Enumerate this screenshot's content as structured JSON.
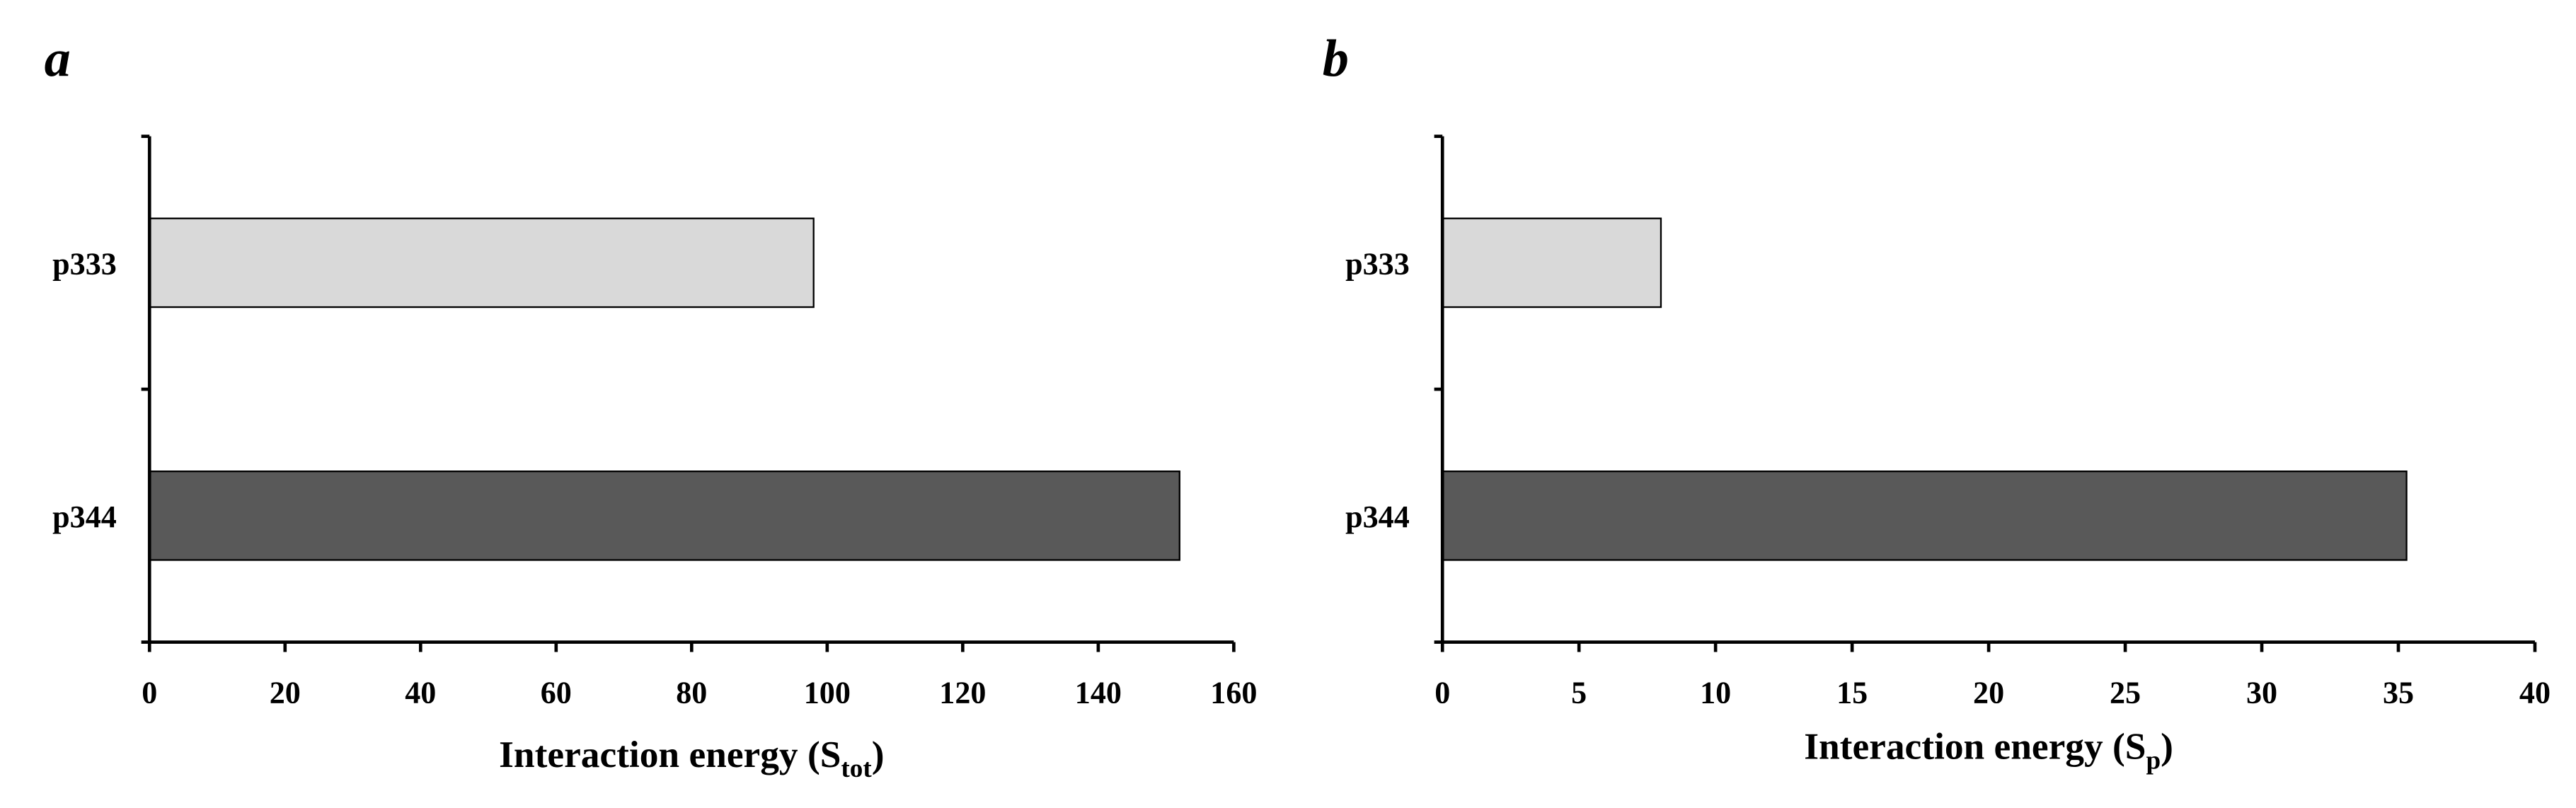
{
  "chart_data": [
    {
      "type": "barh",
      "title": "a",
      "categories": [
        "p333",
        "p344"
      ],
      "values": [
        98,
        152
      ],
      "colors": [
        "#d9d9d9",
        "#595959"
      ],
      "xlim": [
        0,
        160
      ],
      "xticks": [
        0,
        20,
        40,
        60,
        80,
        100,
        120,
        140,
        160
      ],
      "xlabel": [
        "Interaction energy (S",
        "tot",
        ")"
      ]
    },
    {
      "type": "barh",
      "title": "b",
      "categories": [
        "p333",
        "p344"
      ],
      "values": [
        8,
        35.3
      ],
      "colors": [
        "#d9d9d9",
        "#595959"
      ],
      "xlim": [
        0,
        40
      ],
      "xticks": [
        0,
        5,
        10,
        15,
        20,
        25,
        30,
        35,
        40
      ],
      "xlabel": [
        "Interaction energy  (S",
        "p",
        ")"
      ]
    }
  ]
}
